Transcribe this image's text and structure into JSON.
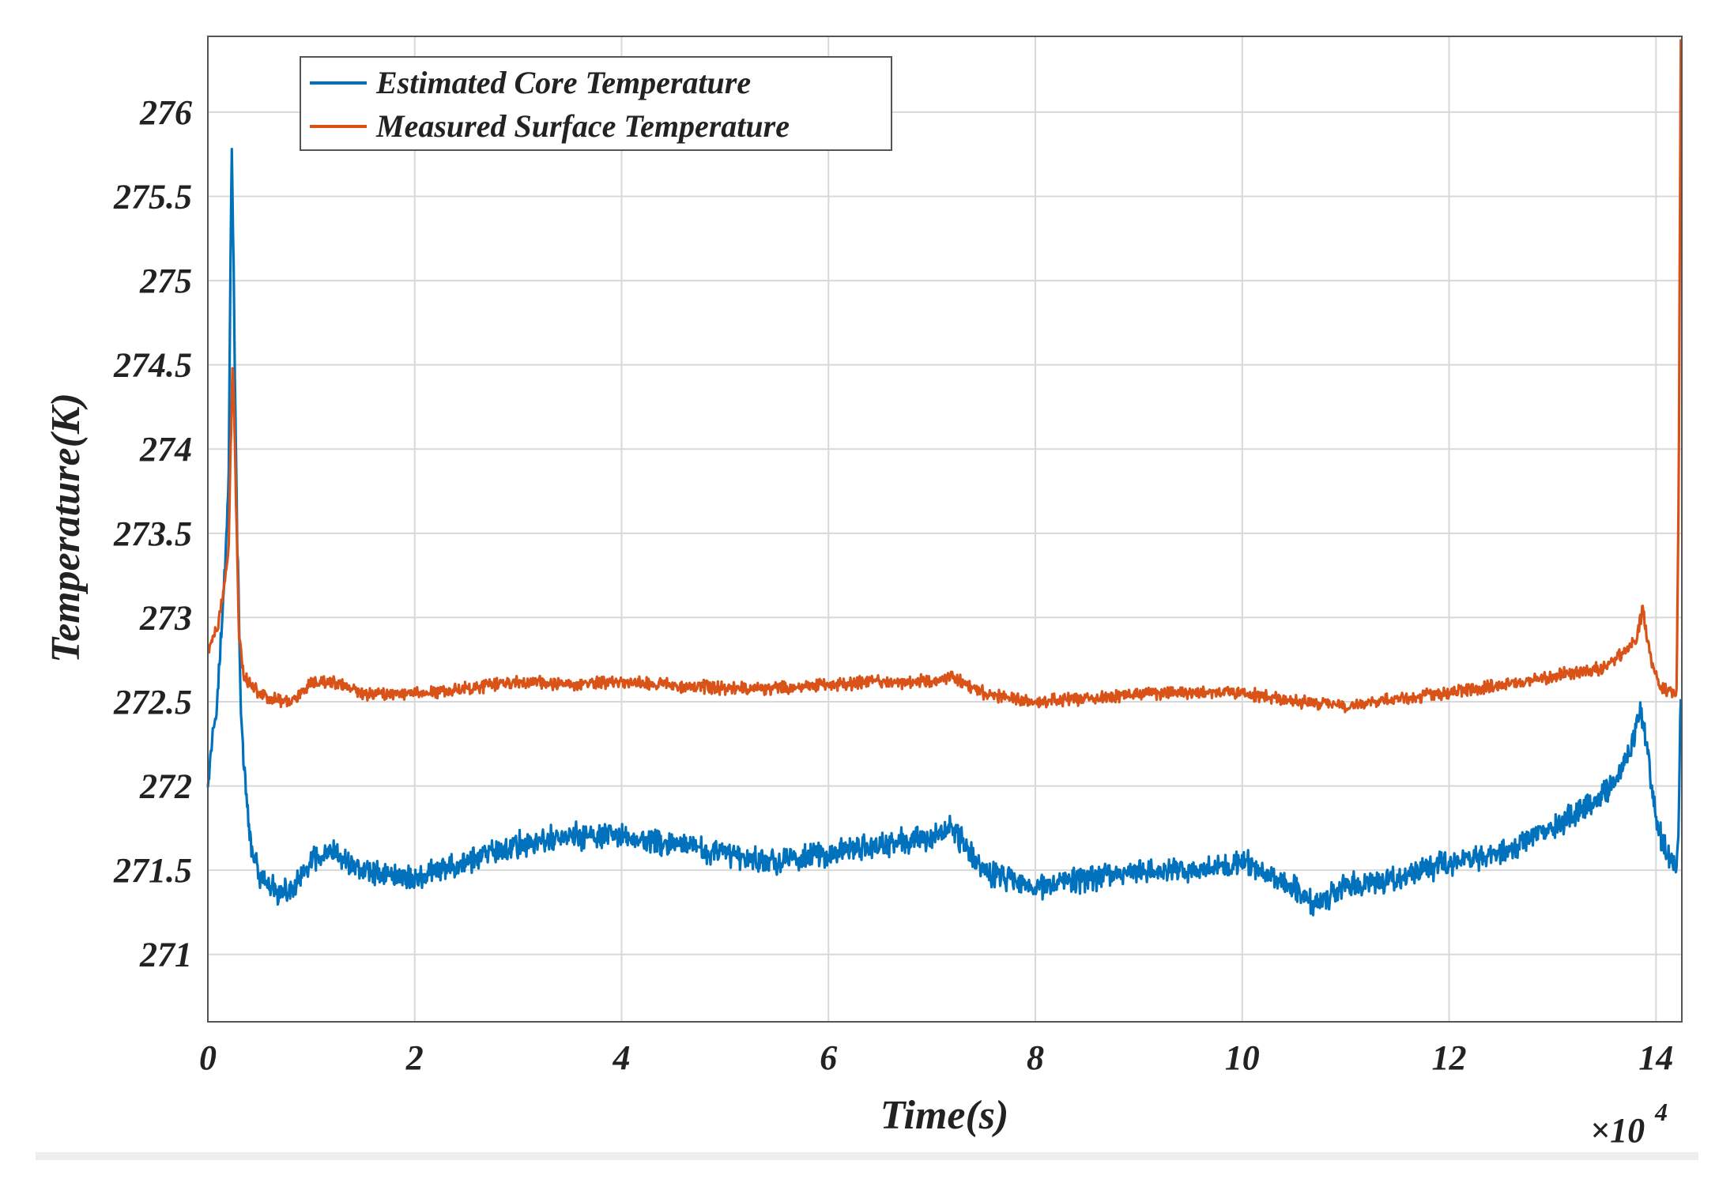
{
  "chart_data": {
    "type": "line",
    "title": "",
    "xlabel": "Time(s)",
    "ylabel": "Temperature(K)",
    "x_multiplier_label": "×10",
    "x_multiplier_exponent": "4",
    "xlim": [
      0,
      14.25
    ],
    "ylim": [
      270.6,
      276.45
    ],
    "xticks": [
      0,
      2,
      4,
      6,
      8,
      10,
      12,
      14
    ],
    "xtick_labels": [
      "0",
      "2",
      "4",
      "6",
      "8",
      "10",
      "12",
      "14"
    ],
    "yticks": [
      271,
      271.5,
      272,
      272.5,
      273,
      273.5,
      274,
      274.5,
      275,
      275.5,
      276
    ],
    "ytick_labels": [
      "271",
      "271.5",
      "272",
      "272.5",
      "273",
      "273.5",
      "274",
      "274.5",
      "275",
      "275.5",
      "276"
    ],
    "grid": true,
    "legend_position": "top-left",
    "series": [
      {
        "name": "Estimated Core Temperature",
        "color": "#0072bd",
        "noise_amplitude": 0.09,
        "x": [
          0,
          0.1,
          0.15,
          0.2,
          0.23,
          0.25,
          0.28,
          0.32,
          0.4,
          0.5,
          0.7,
          0.85,
          1.0,
          1.2,
          1.5,
          2.0,
          2.5,
          3.0,
          3.5,
          4.0,
          4.5,
          5.0,
          5.5,
          6.0,
          6.5,
          7.0,
          7.2,
          7.5,
          8.0,
          8.5,
          9.0,
          9.5,
          10.0,
          10.5,
          10.7,
          11.0,
          11.5,
          12.0,
          12.5,
          13.0,
          13.5,
          13.75,
          13.85,
          13.9,
          14.0,
          14.1,
          14.18,
          14.2,
          14.22,
          14.24
        ],
        "values": [
          272.05,
          272.6,
          273.1,
          273.8,
          275.85,
          275.0,
          273.6,
          272.4,
          271.7,
          271.45,
          271.35,
          271.4,
          271.55,
          271.6,
          271.5,
          271.45,
          271.55,
          271.65,
          271.7,
          271.7,
          271.65,
          271.6,
          271.55,
          271.6,
          271.65,
          271.7,
          271.75,
          271.5,
          271.4,
          271.45,
          271.5,
          271.5,
          271.55,
          271.4,
          271.3,
          271.4,
          271.45,
          271.55,
          271.6,
          271.75,
          271.95,
          272.2,
          272.45,
          272.3,
          271.8,
          271.6,
          271.55,
          271.5,
          271.8,
          272.6
        ]
      },
      {
        "name": "Measured Surface Temperature",
        "color": "#d95319",
        "noise_amplitude": 0.045,
        "x": [
          0,
          0.1,
          0.15,
          0.2,
          0.24,
          0.27,
          0.3,
          0.35,
          0.45,
          0.6,
          0.8,
          1.0,
          1.2,
          1.5,
          2.0,
          2.5,
          3.0,
          3.5,
          4.0,
          4.5,
          5.0,
          5.5,
          6.0,
          6.5,
          7.0,
          7.2,
          7.5,
          8.0,
          8.5,
          9.0,
          9.5,
          10.0,
          10.5,
          11.0,
          11.5,
          12.0,
          12.5,
          13.0,
          13.5,
          13.8,
          13.87,
          13.95,
          14.05,
          14.15,
          14.2,
          14.22,
          14.24
        ],
        "values": [
          272.8,
          272.95,
          273.15,
          273.4,
          274.55,
          273.8,
          272.9,
          272.65,
          272.58,
          272.52,
          272.5,
          272.6,
          272.62,
          272.55,
          272.55,
          272.58,
          272.62,
          272.6,
          272.62,
          272.6,
          272.58,
          272.58,
          272.6,
          272.62,
          272.62,
          272.65,
          272.55,
          272.5,
          272.52,
          272.55,
          272.55,
          272.55,
          272.5,
          272.48,
          272.52,
          272.55,
          272.6,
          272.65,
          272.7,
          272.85,
          273.05,
          272.75,
          272.58,
          272.55,
          272.55,
          273.8,
          276.45
        ]
      }
    ]
  }
}
